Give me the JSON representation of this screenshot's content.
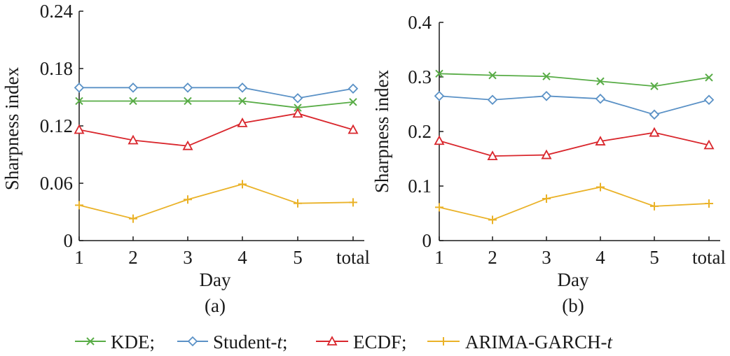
{
  "legend": {
    "items": [
      {
        "label": "KDE;",
        "marker": "x",
        "color": "#58ac46"
      },
      {
        "label_main": "Student-",
        "label_italic": "t",
        "label_tail": ";",
        "marker": "diamond",
        "color": "#5a91c6"
      },
      {
        "label": "ECDF;",
        "marker": "triangle",
        "color": "#d9262c"
      },
      {
        "label_main": "ARIMA-GARCH-",
        "label_italic": "t",
        "label_tail": "",
        "marker": "plus",
        "color": "#eab228"
      }
    ]
  },
  "chart_data": [
    {
      "type": "line",
      "panel_label": "(a)",
      "xlabel": "Day",
      "ylabel": "Sharpness index",
      "categories": [
        "1",
        "2",
        "3",
        "4",
        "5",
        "total"
      ],
      "ylim": [
        0,
        0.24
      ],
      "yticks": [
        "0",
        "0.06",
        "0.12",
        "0.18",
        "0.24"
      ],
      "ytick_values": [
        0,
        0.06,
        0.12,
        0.18,
        0.24
      ],
      "series": [
        {
          "name": "KDE",
          "values": [
            0.146,
            0.146,
            0.146,
            0.146,
            0.139,
            0.145
          ]
        },
        {
          "name": "Student-t",
          "values": [
            0.16,
            0.16,
            0.16,
            0.16,
            0.149,
            0.159
          ]
        },
        {
          "name": "ECDF",
          "values": [
            0.116,
            0.105,
            0.099,
            0.123,
            0.133,
            0.116
          ]
        },
        {
          "name": "ARIMA-GARCH-t",
          "values": [
            0.037,
            0.023,
            0.043,
            0.059,
            0.039,
            0.04
          ]
        }
      ]
    },
    {
      "type": "line",
      "panel_label": "(b)",
      "xlabel": "Day",
      "ylabel": "Sharpness index",
      "categories": [
        "1",
        "2",
        "3",
        "4",
        "5",
        "total"
      ],
      "ylim": [
        0,
        0.4
      ],
      "yticks": [
        "0",
        "0.1",
        "0.2",
        "0.3",
        "0.4"
      ],
      "ytick_values": [
        0,
        0.1,
        0.2,
        0.3,
        0.4
      ],
      "series": [
        {
          "name": "KDE",
          "values": [
            0.306,
            0.303,
            0.301,
            0.292,
            0.283,
            0.299
          ]
        },
        {
          "name": "Student-t",
          "values": [
            0.265,
            0.258,
            0.265,
            0.26,
            0.231,
            0.258
          ]
        },
        {
          "name": "ECDF",
          "values": [
            0.183,
            0.155,
            0.157,
            0.182,
            0.198,
            0.175
          ]
        },
        {
          "name": "ARIMA-GARCH-t",
          "values": [
            0.061,
            0.038,
            0.077,
            0.098,
            0.063,
            0.068
          ]
        }
      ]
    }
  ]
}
